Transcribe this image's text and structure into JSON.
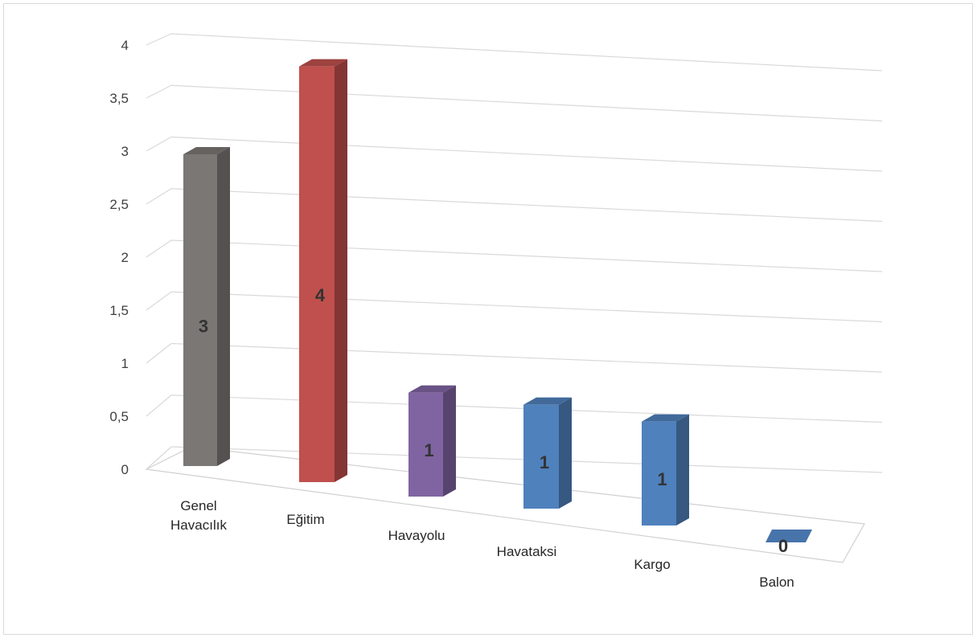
{
  "chart_data": {
    "type": "bar",
    "style": "3d-column",
    "categories": [
      "Genel\nHavacılık",
      "Eğitim",
      "Havayolu",
      "Havataksi",
      "Kargo",
      "Balon"
    ],
    "values": [
      3,
      4,
      1,
      1,
      1,
      0
    ],
    "data_labels": [
      "3",
      "4",
      "1",
      "1",
      "1",
      "0"
    ],
    "ylim": [
      0,
      4
    ],
    "yticks": [
      "0",
      "0,5",
      "1",
      "1,5",
      "2",
      "2,5",
      "3",
      "3,5",
      "4"
    ],
    "grid": true,
    "legend": "none",
    "title": "",
    "xlabel": "",
    "ylabel": "",
    "colors": [
      "#7b7775",
      "#c0504d",
      "#8064a2",
      "#4f81bd",
      "#4f81bd",
      "#4f81bd"
    ]
  }
}
